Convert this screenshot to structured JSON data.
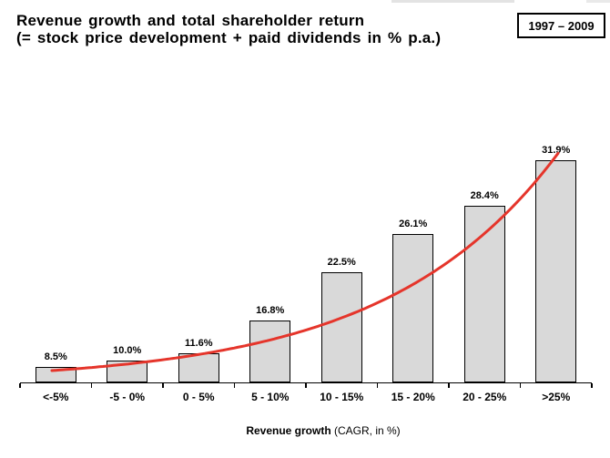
{
  "header": {
    "title_line1": "Revenue growth and total shareholder return",
    "title_line2": "(= stock price development + paid dividends in % p.a.)",
    "period_badge": "1997 – 2009"
  },
  "chart_data": {
    "type": "bar",
    "title": "Revenue growth and total shareholder return (= stock price development + paid dividends in % p.a.)",
    "period": "1997 – 2009",
    "categories": [
      "<-5%",
      "-5 - 0%",
      "0 - 5%",
      "5 - 10%",
      "10 - 15%",
      "15 - 20%",
      "20 - 25%",
      ">25%"
    ],
    "values": [
      8.5,
      10.0,
      11.6,
      16.8,
      22.5,
      26.1,
      28.4,
      31.9
    ],
    "value_labels": [
      "8.5%",
      "10.0%",
      "11.6%",
      "16.8%",
      "22.5%",
      "26.1%",
      "28.4%",
      "31.9%"
    ],
    "xlabel": "Revenue growth (CAGR, in %)",
    "xlabel_bold_part": "Revenue growth",
    "xlabel_regular_part": " (CAGR, in %)",
    "ylabel": "",
    "y_axis": "hidden, values shown as data labels",
    "grid": "off",
    "legend": "none",
    "trend_line": {
      "shape": "exponential",
      "color": "#e5352b"
    },
    "colors": {
      "bar_fill": "#d9d9d9",
      "bar_border": "#000000",
      "axis": "#000000",
      "text": "#000000",
      "background": "#ffffff"
    }
  }
}
